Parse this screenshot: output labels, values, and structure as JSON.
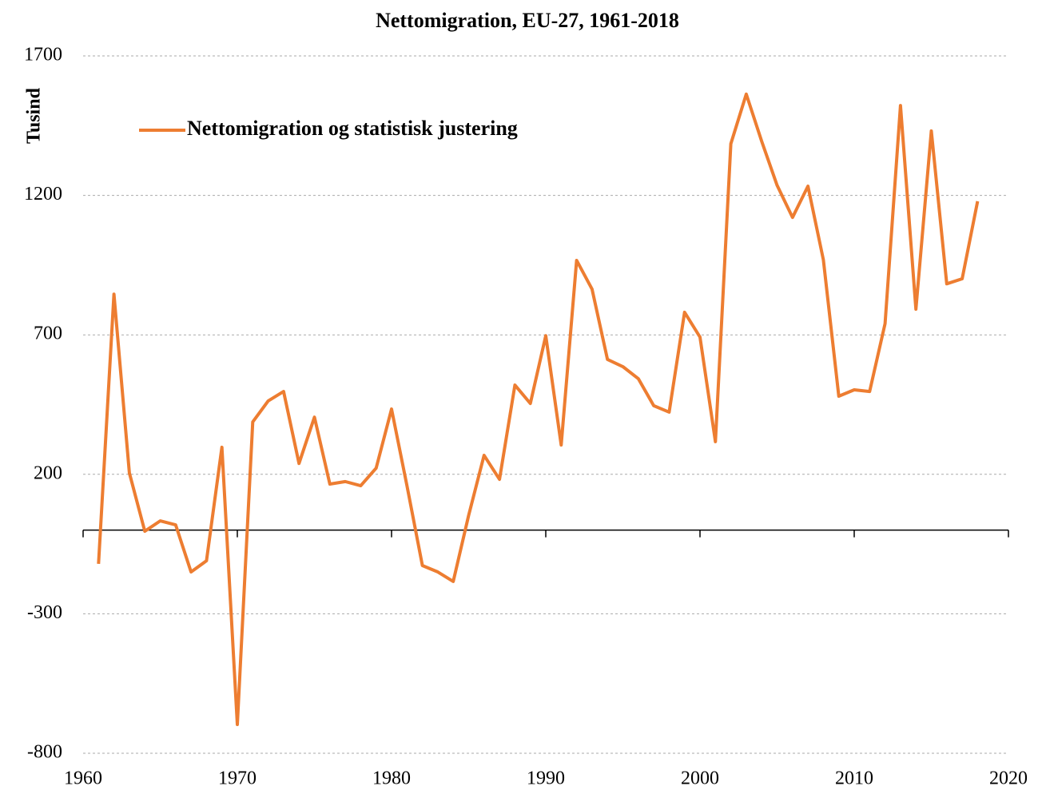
{
  "chart_data": {
    "type": "line",
    "title": "Nettomigration, EU-27, 1961-2018",
    "y_label": "Tusind",
    "x": [
      1961,
      1962,
      1963,
      1964,
      1965,
      1966,
      1967,
      1968,
      1969,
      1970,
      1971,
      1972,
      1973,
      1974,
      1975,
      1976,
      1977,
      1978,
      1979,
      1980,
      1981,
      1982,
      1983,
      1984,
      1985,
      1986,
      1987,
      1988,
      1989,
      1990,
      1991,
      1992,
      1993,
      1994,
      1995,
      1996,
      1997,
      1998,
      1999,
      2000,
      2001,
      2002,
      2003,
      2004,
      2005,
      2006,
      2007,
      2008,
      2009,
      2010,
      2011,
      2012,
      2013,
      2014,
      2015,
      2016,
      2017,
      2018
    ],
    "series": [
      {
        "name": "Nettomigration og statistisk justering",
        "color": "#ed7d31",
        "values": [
          -121,
          846,
          205,
          -4,
          33,
          19,
          -150,
          -110,
          297,
          -697,
          388,
          463,
          497,
          239,
          405,
          165,
          174,
          159,
          222,
          434,
          159,
          -127,
          -150,
          -184,
          53,
          268,
          182,
          520,
          454,
          697,
          305,
          967,
          864,
          612,
          586,
          543,
          446,
          423,
          781,
          692,
          317,
          1385,
          1563,
          1394,
          1236,
          1121,
          1233,
          969,
          480,
          503,
          497,
          740,
          1522,
          792,
          1431,
          883,
          901,
          1179
        ]
      }
    ],
    "xlim": [
      1960,
      2020
    ],
    "xticks": [
      1960,
      1970,
      1980,
      1990,
      2000,
      2010,
      2020
    ],
    "ylim": [
      -800,
      1700
    ],
    "yticks": [
      -800,
      -300,
      200,
      700,
      1200,
      1700
    ],
    "grid": true,
    "legend": "upper left"
  }
}
